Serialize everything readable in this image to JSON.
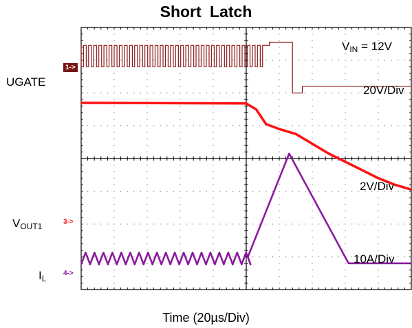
{
  "chart_data": {
    "type": "line",
    "title": "Short  Latch",
    "xlabel": "Time (20µs/Div)",
    "x_divisions": 10,
    "y_divisions": 8,
    "grid": true,
    "annotations": {
      "vin_prefix": "V",
      "vin_sub": "IN",
      "vin_value": " = 12V",
      "ch1_scale": "20V/Div",
      "ch3_scale": "2V/Div",
      "ch4_scale": "10A/Div"
    },
    "channels": [
      {
        "name": "UGATE",
        "marker": "1->",
        "color": "#8b1a1a"
      },
      {
        "name_main": "V",
        "name_sub": "OUT1",
        "marker": "3->",
        "color": "#ff1010"
      },
      {
        "name_main": "I",
        "name_sub": "L",
        "marker": "4->",
        "color": "#8a1a9e"
      }
    ],
    "series": [
      {
        "name": "UGATE",
        "x": [
          0,
          5.7,
          5.7,
          6.4,
          6.4,
          6.7,
          6.7,
          10
        ],
        "y": [
          7.45,
          7.45,
          7.55,
          7.55,
          6.0,
          6.0,
          6.2,
          6.2
        ],
        "switching_until": 5.5
      },
      {
        "name": "VOUT1",
        "x": [
          0,
          5.0,
          5.3,
          5.6,
          6.0,
          6.5,
          7.0,
          7.5,
          8.0,
          8.5,
          9.0,
          9.5,
          10
        ],
        "y": [
          5.7,
          5.68,
          5.5,
          5.05,
          4.9,
          4.75,
          4.45,
          4.15,
          3.9,
          3.65,
          3.4,
          3.2,
          3.05
        ]
      },
      {
        "name": "IL",
        "x": [
          0,
          5.0,
          5.05,
          6.3,
          8.1,
          10
        ],
        "y": [
          0.95,
          0.95,
          1.0,
          4.15,
          0.8,
          0.8
        ],
        "ripple_until": 5.0
      }
    ]
  }
}
